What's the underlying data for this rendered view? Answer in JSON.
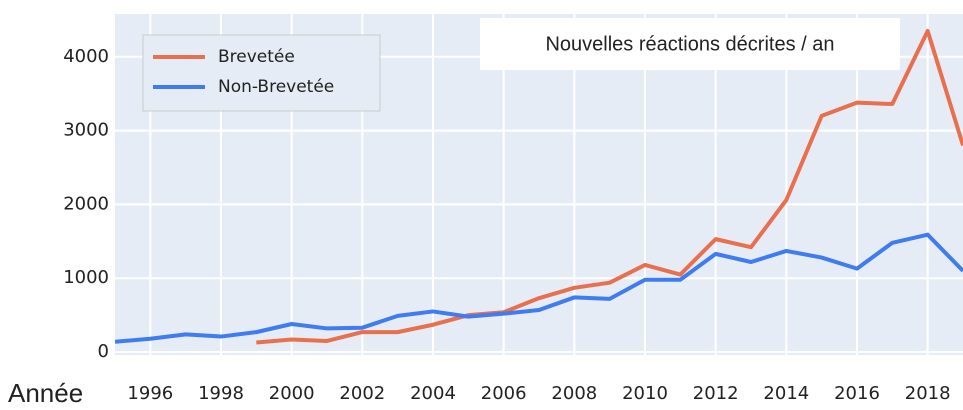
{
  "chart_data": {
    "type": "line",
    "annotation": "Nouvelles réactions décrites / an",
    "x_label": "Année",
    "x": [
      1995,
      1996,
      1997,
      1998,
      1999,
      2000,
      2001,
      2002,
      2003,
      2004,
      2005,
      2006,
      2007,
      2008,
      2009,
      2010,
      2011,
      2012,
      2013,
      2014,
      2015,
      2016,
      2017,
      2018,
      2019
    ],
    "series": [
      {
        "name": "Brevetée",
        "color": "#e8704f",
        "values": [
          null,
          null,
          null,
          null,
          130,
          170,
          150,
          270,
          270,
          370,
          500,
          540,
          730,
          870,
          940,
          1180,
          1050,
          1530,
          1420,
          2060,
          3200,
          3380,
          3360,
          4350,
          2800
        ]
      },
      {
        "name": "Non-Brevetée",
        "color": "#3f7cf0",
        "values": [
          140,
          180,
          240,
          210,
          270,
          380,
          320,
          330,
          490,
          550,
          480,
          520,
          570,
          740,
          720,
          980,
          980,
          1330,
          1220,
          1370,
          1280,
          1130,
          1480,
          1590,
          1100
        ]
      }
    ],
    "xlim": [
      1995,
      2019
    ],
    "xticks": [
      1996,
      1998,
      2000,
      2002,
      2004,
      2006,
      2008,
      2010,
      2012,
      2014,
      2016,
      2018
    ],
    "ylim": [
      -40,
      4580
    ],
    "yticks": [
      0,
      1000,
      2000,
      3000,
      4000
    ],
    "grid": true,
    "legend_position": "upper-left"
  }
}
